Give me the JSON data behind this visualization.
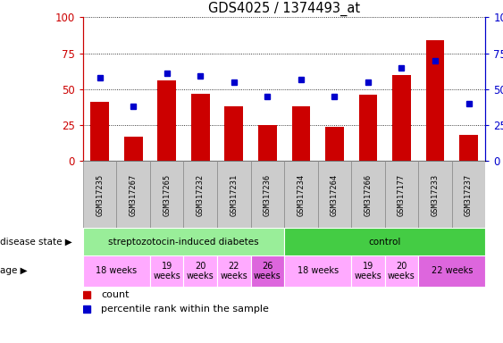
{
  "title": "GDS4025 / 1374493_at",
  "samples": [
    "GSM317235",
    "GSM317267",
    "GSM317265",
    "GSM317232",
    "GSM317231",
    "GSM317236",
    "GSM317234",
    "GSM317264",
    "GSM317266",
    "GSM317177",
    "GSM317233",
    "GSM317237"
  ],
  "counts": [
    41,
    17,
    56,
    47,
    38,
    25,
    38,
    24,
    46,
    60,
    84,
    18
  ],
  "percentiles": [
    58,
    38,
    61,
    59,
    55,
    45,
    57,
    45,
    55,
    65,
    70,
    40
  ],
  "bar_color": "#cc0000",
  "dot_color": "#0000cc",
  "ylim": [
    0,
    100
  ],
  "yticks": [
    0,
    25,
    50,
    75,
    100
  ],
  "disease_groups": [
    {
      "label": "streptozotocin-induced diabetes",
      "start": 0,
      "end": 6,
      "color": "#99ee99"
    },
    {
      "label": "control",
      "start": 6,
      "end": 12,
      "color": "#44cc44"
    }
  ],
  "age_groups": [
    {
      "label": "18 weeks",
      "start": 0,
      "end": 2,
      "color": "#ffaaff"
    },
    {
      "label": "19\nweeks",
      "start": 2,
      "end": 3,
      "color": "#ffaaff"
    },
    {
      "label": "20\nweeks",
      "start": 3,
      "end": 4,
      "color": "#ffaaff"
    },
    {
      "label": "22\nweeks",
      "start": 4,
      "end": 5,
      "color": "#ffaaff"
    },
    {
      "label": "26\nweeks",
      "start": 5,
      "end": 6,
      "color": "#dd66dd"
    },
    {
      "label": "18 weeks",
      "start": 6,
      "end": 8,
      "color": "#ffaaff"
    },
    {
      "label": "19\nweeks",
      "start": 8,
      "end": 9,
      "color": "#ffaaff"
    },
    {
      "label": "20\nweeks",
      "start": 9,
      "end": 10,
      "color": "#ffaaff"
    },
    {
      "label": "22 weeks",
      "start": 10,
      "end": 12,
      "color": "#dd66dd"
    }
  ],
  "legend_count_label": "count",
  "legend_pct_label": "percentile rank within the sample",
  "disease_state_label": "disease state",
  "age_label": "age",
  "bg_color": "#ffffff",
  "tick_color_left": "#cc0000",
  "tick_color_right": "#0000cc",
  "sample_box_color": "#cccccc",
  "sample_box_edge": "#888888"
}
